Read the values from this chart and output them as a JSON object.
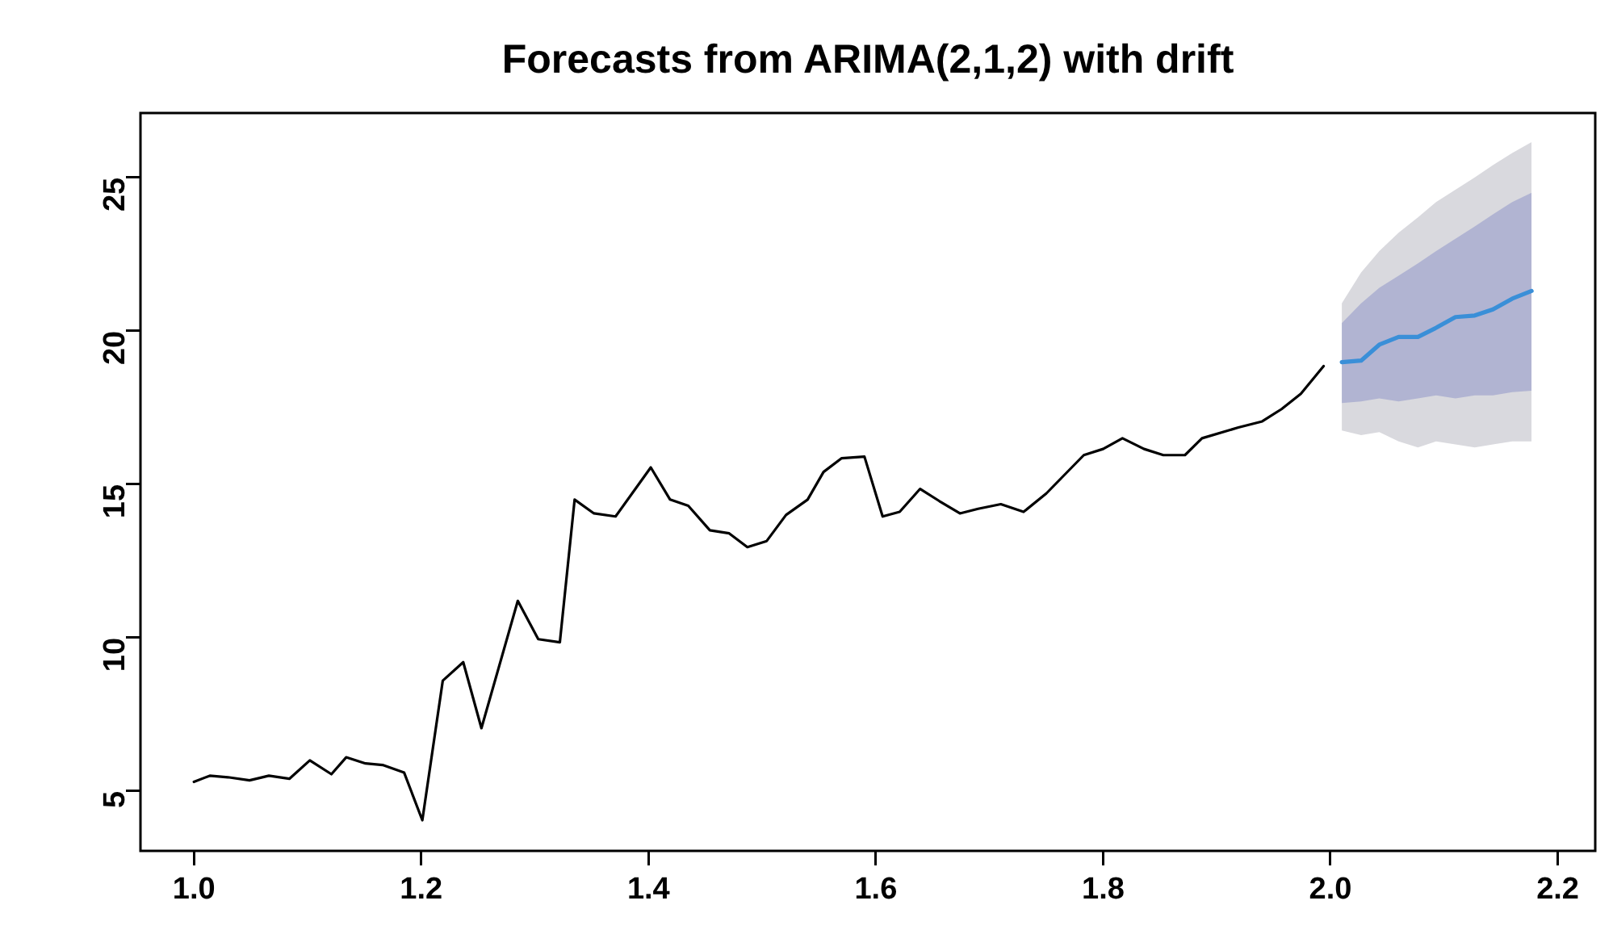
{
  "chart_data": {
    "type": "line",
    "title": "Forecasts from ARIMA(2,1,2) with drift",
    "xlim": [
      0.953,
      2.233
    ],
    "ylim": [
      3.05,
      27.1
    ],
    "xticks": [
      {
        "value": 1,
        "label": "1.0"
      },
      {
        "value": 1.2,
        "label": "1.2"
      },
      {
        "value": 1.4,
        "label": "1.4"
      },
      {
        "value": 1.6,
        "label": "1.6"
      },
      {
        "value": 1.8,
        "label": "1.8"
      },
      {
        "value": 2,
        "label": "2.0"
      },
      {
        "value": 2.2,
        "label": "2.2"
      }
    ],
    "yticks": [
      5,
      10,
      15,
      20,
      25
    ],
    "grid": false,
    "legend": false,
    "marker": "none",
    "line_style": "solid",
    "series": [
      {
        "color": "#000000",
        "x": [
          1.0,
          1.014,
          1.03,
          1.049,
          1.066,
          1.084,
          1.102,
          1.121,
          1.134,
          1.151,
          1.166,
          1.185,
          1.201,
          1.219,
          1.237,
          1.253,
          1.285,
          1.303,
          1.322,
          1.335,
          1.352,
          1.371,
          1.402,
          1.419,
          1.435,
          1.454,
          1.471,
          1.487,
          1.504,
          1.521,
          1.54,
          1.554,
          1.57,
          1.59,
          1.606,
          1.621,
          1.639,
          1.656,
          1.674,
          1.69,
          1.71,
          1.73,
          1.75,
          1.783,
          1.8,
          1.817,
          1.836,
          1.853,
          1.872,
          1.887,
          1.919,
          1.94,
          1.957,
          1.974,
          1.994
        ],
        "values": [
          5.3,
          5.5,
          5.45,
          5.35,
          5.5,
          5.4,
          6.0,
          5.55,
          6.1,
          5.9,
          5.85,
          5.6,
          4.05,
          8.6,
          9.2,
          7.05,
          11.2,
          9.95,
          9.85,
          14.5,
          14.05,
          13.95,
          15.55,
          14.5,
          14.3,
          13.5,
          13.4,
          12.95,
          13.15,
          14.0,
          14.5,
          15.4,
          15.85,
          15.9,
          13.95,
          14.1,
          14.85,
          14.45,
          14.05,
          14.2,
          14.35,
          14.1,
          14.7,
          15.95,
          16.15,
          16.5,
          16.15,
          15.95,
          15.95,
          16.5,
          16.85,
          17.05,
          17.45,
          17.95,
          18.85
        ]
      },
      {
        "color": "#d9d9de",
        "x": [
          2.01,
          2.027,
          2.043,
          2.06,
          2.077,
          2.093,
          2.11,
          2.127,
          2.143,
          2.16,
          2.177
        ],
        "values": [
          null,
          null,
          null,
          null,
          null,
          null,
          null,
          null,
          null,
          null,
          null
        ],
        "lower": [
          16.75,
          16.6,
          16.7,
          16.4,
          16.2,
          16.4,
          16.3,
          16.2,
          16.3,
          16.4,
          16.4
        ],
        "upper": [
          20.9,
          21.9,
          22.6,
          23.2,
          23.7,
          24.2,
          24.6,
          25.0,
          25.4,
          25.8,
          26.15
        ]
      },
      {
        "color": "#b1b4d2",
        "x": [
          2.01,
          2.027,
          2.043,
          2.06,
          2.077,
          2.093,
          2.11,
          2.127,
          2.143,
          2.16,
          2.177
        ],
        "values": [
          null,
          null,
          null,
          null,
          null,
          null,
          null,
          null,
          null,
          null,
          null
        ],
        "lower": [
          17.65,
          17.7,
          17.8,
          17.7,
          17.8,
          17.9,
          17.8,
          17.9,
          17.9,
          18.0,
          18.05
        ],
        "upper": [
          20.25,
          20.9,
          21.4,
          21.8,
          22.2,
          22.6,
          23.0,
          23.4,
          23.8,
          24.2,
          24.5
        ]
      },
      {
        "color": "#3a8fd8",
        "x": [
          2.01,
          2.027,
          2.043,
          2.06,
          2.077,
          2.093,
          2.11,
          2.127,
          2.143,
          2.16,
          2.177
        ],
        "values": [
          18.98,
          19.03,
          19.55,
          19.8,
          19.8,
          20.1,
          20.45,
          20.5,
          20.7,
          21.05,
          21.3
        ]
      }
    ]
  }
}
